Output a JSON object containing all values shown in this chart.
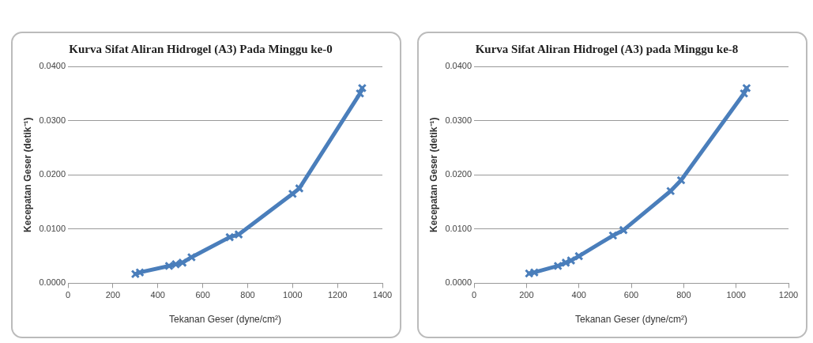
{
  "chart_data": [
    {
      "type": "line",
      "title": "Kurva Sifat Aliran Hidrogel (A3) Pada Minggu ke-0",
      "xlabel": "Tekanan Geser (dyne/cm²)",
      "ylabel": "Kecepatan Geser (detik⁻¹)",
      "x": [
        300,
        320,
        450,
        480,
        510,
        550,
        720,
        760,
        1000,
        1030,
        1300,
        1310
      ],
      "series": [
        {
          "color": "#4a7ebb",
          "values": [
            0.0017,
            0.002,
            0.0032,
            0.0035,
            0.0038,
            0.0048,
            0.0085,
            0.009,
            0.0165,
            0.0175,
            0.035,
            0.036
          ]
        }
      ],
      "xlim": [
        0,
        1400
      ],
      "xticks": [
        0,
        200,
        400,
        600,
        800,
        1000,
        1200,
        1400
      ],
      "ylim": [
        0,
        0.04
      ],
      "yticks": [
        {
          "value": 0,
          "label": "0.0000"
        },
        {
          "value": 0.01,
          "label": "0.0100"
        },
        {
          "value": 0.02,
          "label": "0.0200"
        },
        {
          "value": 0.03,
          "label": "0.0300"
        },
        {
          "value": 0.04,
          "label": "0.0400"
        }
      ],
      "grid": "y",
      "marker": "cross",
      "line_style": "solid"
    },
    {
      "type": "line",
      "title": "Kurva Sifat Aliran Hidrogel (A3) pada Minggu ke-8",
      "xlabel": "Tekanan Geser (dyne/cm²)",
      "ylabel": "Kecepatan Geser (detik⁻¹)",
      "x": [
        210,
        230,
        320,
        350,
        370,
        400,
        530,
        570,
        750,
        790,
        1030,
        1040
      ],
      "series": [
        {
          "color": "#4a7ebb",
          "values": [
            0.0018,
            0.002,
            0.0032,
            0.0038,
            0.0042,
            0.005,
            0.0088,
            0.0098,
            0.017,
            0.019,
            0.035,
            0.036
          ]
        }
      ],
      "xlim": [
        0,
        1200
      ],
      "xticks": [
        0,
        200,
        400,
        600,
        800,
        1000,
        1200
      ],
      "ylim": [
        0,
        0.04
      ],
      "yticks": [
        {
          "value": 0,
          "label": "0.0000"
        },
        {
          "value": 0.01,
          "label": "0.0100"
        },
        {
          "value": 0.02,
          "label": "0.0200"
        },
        {
          "value": 0.03,
          "label": "0.0300"
        },
        {
          "value": 0.04,
          "label": "0.0400"
        }
      ],
      "grid": "y",
      "marker": "cross",
      "line_style": "solid"
    }
  ]
}
